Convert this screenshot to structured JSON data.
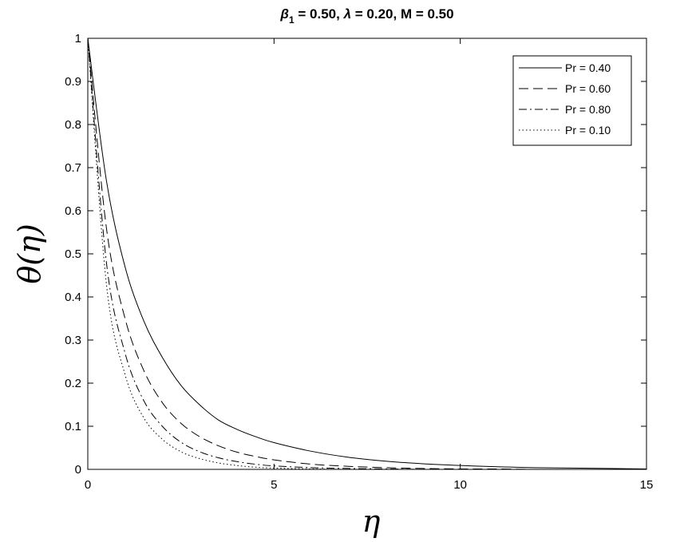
{
  "chart_data": {
    "type": "line",
    "title": {
      "beta_symbol": "β",
      "beta_subscript": "1",
      "beta_value": " = 0.50, ",
      "lambda_symbol": "λ",
      "rest": " = 0.20, M = 0.50"
    },
    "xlabel": "η",
    "ylabel": "θ(η)",
    "xlim": [
      0,
      15
    ],
    "ylim": [
      0,
      1
    ],
    "xticks": [
      0,
      5,
      10,
      15
    ],
    "xtick_labels": [
      "0",
      "5",
      "10",
      "15"
    ],
    "yticks": [
      0,
      0.1,
      0.2,
      0.3,
      0.4,
      0.5,
      0.6,
      0.7,
      0.8,
      0.9,
      1
    ],
    "ytick_labels": [
      "0",
      "0.1",
      "0.2",
      "0.3",
      "0.4",
      "0.5",
      "0.6",
      "0.7",
      "0.8",
      "0.9",
      "1"
    ],
    "grid": false,
    "legend_position": "top-right",
    "line_color": "#000000",
    "x": [
      0,
      0.5,
      1,
      1.5,
      2,
      2.5,
      3,
      3.5,
      4,
      4.5,
      5,
      6,
      7,
      8,
      9,
      10,
      11,
      12,
      13,
      14,
      15
    ],
    "series": [
      {
        "name": "Pr = 0.40",
        "dash": "solid",
        "values": [
          1,
          0.67,
          0.47,
          0.345,
          0.26,
          0.195,
          0.15,
          0.115,
          0.093,
          0.076,
          0.062,
          0.042,
          0.028,
          0.019,
          0.013,
          0.009,
          0.006,
          0.004,
          0.003,
          0.002,
          0.001
        ]
      },
      {
        "name": "Pr = 0.60",
        "dash": "dashed",
        "values": [
          1,
          0.56,
          0.35,
          0.23,
          0.155,
          0.107,
          0.076,
          0.055,
          0.04,
          0.03,
          0.022,
          0.012,
          0.007,
          0.004,
          0.002,
          0.001,
          0.001,
          0,
          0,
          0,
          0
        ]
      },
      {
        "name": "Pr = 0.80",
        "dash": "dashdot",
        "values": [
          1,
          0.48,
          0.27,
          0.16,
          0.1,
          0.063,
          0.041,
          0.027,
          0.018,
          0.012,
          0.008,
          0.004,
          0.002,
          0.001,
          0,
          0,
          0,
          0,
          0,
          0,
          0
        ]
      },
      {
        "name": "Pr = 0.10",
        "dash": "dotted",
        "values": [
          1,
          0.43,
          0.22,
          0.12,
          0.07,
          0.041,
          0.025,
          0.015,
          0.009,
          0.005,
          0.003,
          0.001,
          0,
          0,
          0,
          0,
          0,
          0,
          0,
          0,
          0
        ]
      }
    ]
  }
}
